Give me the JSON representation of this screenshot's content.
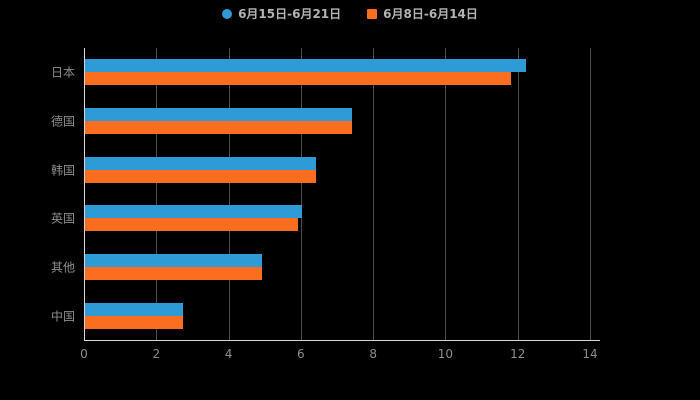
{
  "chart_data": {
    "type": "bar",
    "orientation": "horizontal",
    "title": "",
    "background_color": "#000000",
    "categories": [
      "日本",
      "德国",
      "韩国",
      "英国",
      "其他",
      "中国"
    ],
    "series": [
      {
        "name": "6月15日-6月21日",
        "color": "#2E9BD6",
        "marker": "circle",
        "values": [
          12.2,
          7.4,
          6.4,
          6.0,
          4.9,
          2.7
        ]
      },
      {
        "name": "6月8日-6月14日",
        "color": "#FC6E1F",
        "marker": "square",
        "values": [
          11.8,
          7.4,
          6.4,
          5.9,
          4.9,
          2.7
        ]
      }
    ],
    "xlim": [
      0,
      14
    ],
    "xticks": [
      0,
      2,
      4,
      6,
      8,
      10,
      12,
      14
    ],
    "grid": true,
    "legend_position": "top",
    "axis_text_color": "#8c8c8c",
    "legend_text_color": "#b3b3b3"
  }
}
